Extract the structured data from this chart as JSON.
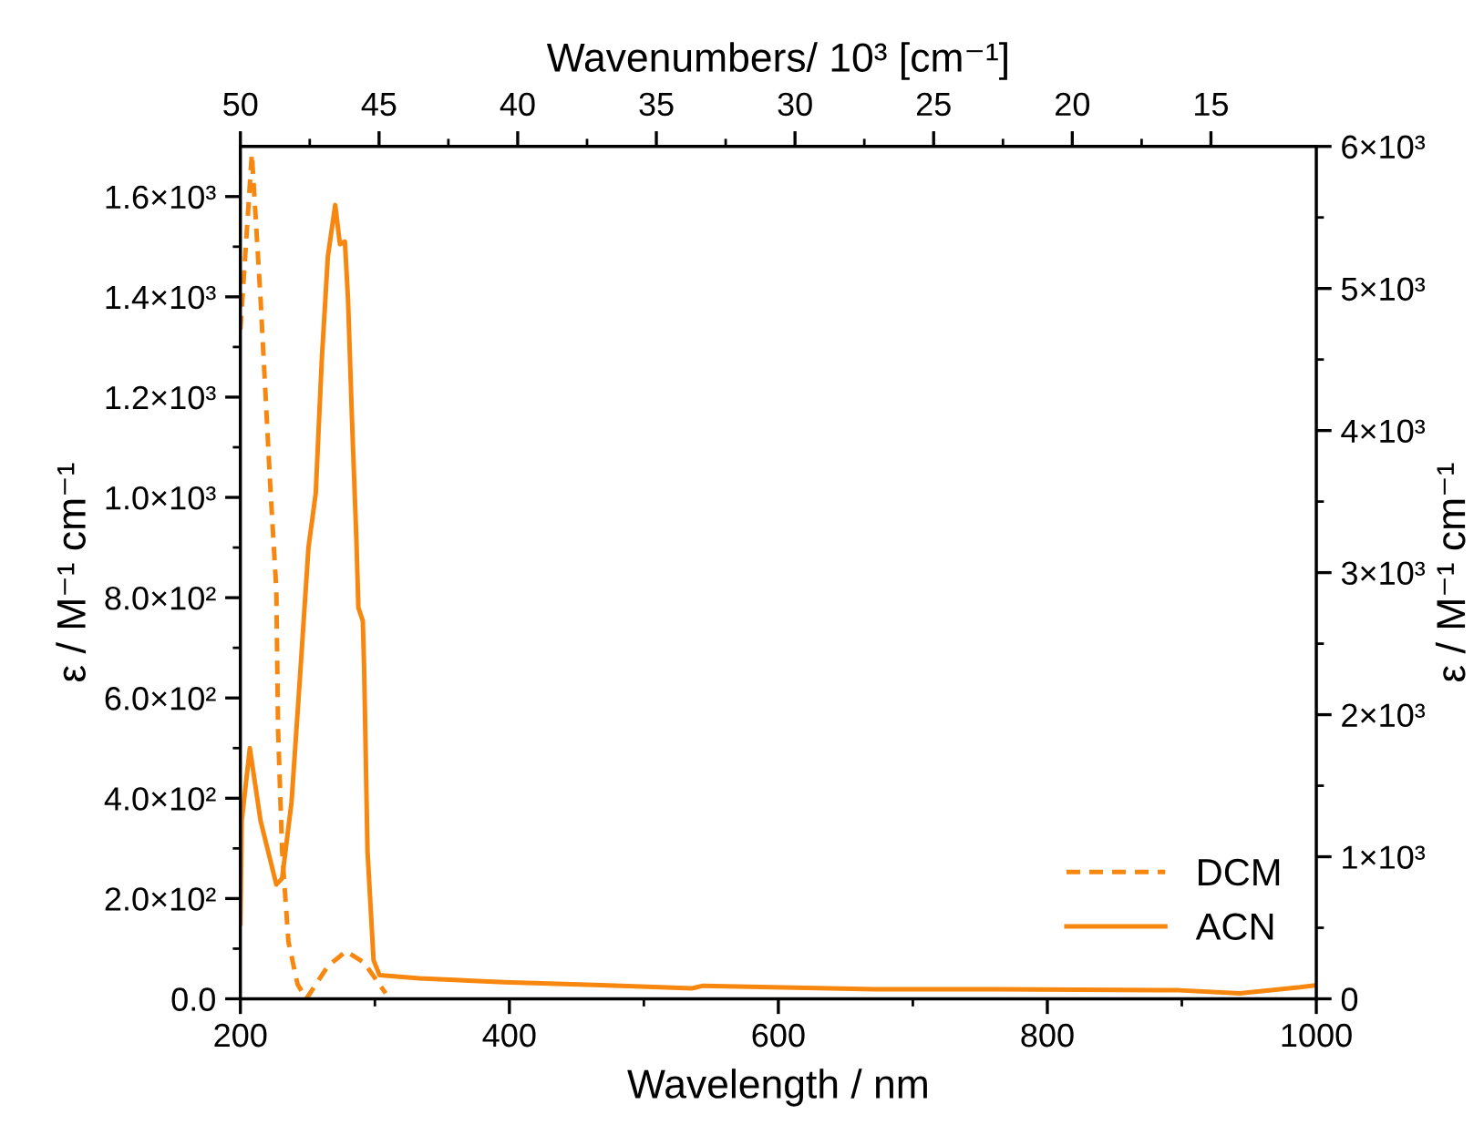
{
  "chart_data": {
    "type": "line",
    "xlabel": "Wavelength / nm",
    "ylabel": "ε / M⁻¹ cm⁻¹",
    "y2label": "ε / M⁻¹ cm⁻¹",
    "x2label": "Wavenumbers/ 10³ [cm⁻¹]",
    "xlim": [
      200,
      1000
    ],
    "xticks": [
      200,
      400,
      600,
      800,
      1000
    ],
    "x2lim": [
      50,
      11.2
    ],
    "x2ticks": [
      50,
      45,
      40,
      35,
      30,
      25,
      20,
      15
    ],
    "ylim": [
      0,
      1700
    ],
    "yticks": [
      {
        "value": 0,
        "label": "0.0"
      },
      {
        "value": 200,
        "label": "2.0×10²"
      },
      {
        "value": 400,
        "label": "4.0×10²"
      },
      {
        "value": 600,
        "label": "6.0×10²"
      },
      {
        "value": 800,
        "label": "8.0×10²"
      },
      {
        "value": 1000,
        "label": "1.0×10³"
      },
      {
        "value": 1200,
        "label": "1.2×10³"
      },
      {
        "value": 1400,
        "label": "1.4×10³"
      },
      {
        "value": 1600,
        "label": "1.6×10³"
      }
    ],
    "y2lim": [
      0,
      6000
    ],
    "y2ticks": [
      0,
      {
        "value": 1000,
        "label": "1×10³"
      },
      {
        "value": 2000,
        "label": "2×10³"
      },
      {
        "value": 3000,
        "label": "3×10³"
      },
      {
        "value": 4000,
        "label": "4×10³"
      },
      {
        "value": 5000,
        "label": "5×10³"
      },
      {
        "value": 6000,
        "label": "6×10³"
      }
    ],
    "grid": false,
    "legend": "bottom right",
    "marker": "none",
    "series": [
      {
        "name": "DCM",
        "color": "#f7870f",
        "line_style": "dashed",
        "x": [
          200,
          204,
          208.5,
          215,
          222,
          226.7,
          228,
          231,
          235.7,
          242.5,
          249,
          265,
          278.6,
          292,
          308
        ],
        "values": [
          1335,
          1500,
          1685,
          1395,
          1033,
          816,
          537,
          295,
          114,
          29,
          0,
          65,
          95,
          72,
          11
        ]
      },
      {
        "name": "ACN",
        "color": "#f7870f",
        "line_style": "solid",
        "x": [
          200,
          201,
          207,
          215,
          226.7,
          231,
          238,
          244.7,
          250.6,
          256,
          260.5,
          265,
          270.5,
          274,
          277.7,
          280,
          283,
          286.3,
          287.7,
          291,
          292,
          294.5,
          299,
          303.5,
          333,
          396,
          468.5,
          536,
          544,
          672,
          762,
          898,
          943,
          988,
          1000
        ],
        "values": [
          150,
          355,
          500,
          355,
          228,
          240,
          392,
          658,
          900,
          1008,
          1274,
          1480,
          1583,
          1505,
          1510,
          1396,
          1153,
          911,
          780,
          754,
          658,
          295,
          77,
          47,
          41,
          33,
          27,
          21,
          26,
          19,
          19,
          17,
          11,
          23,
          27
        ]
      }
    ]
  }
}
